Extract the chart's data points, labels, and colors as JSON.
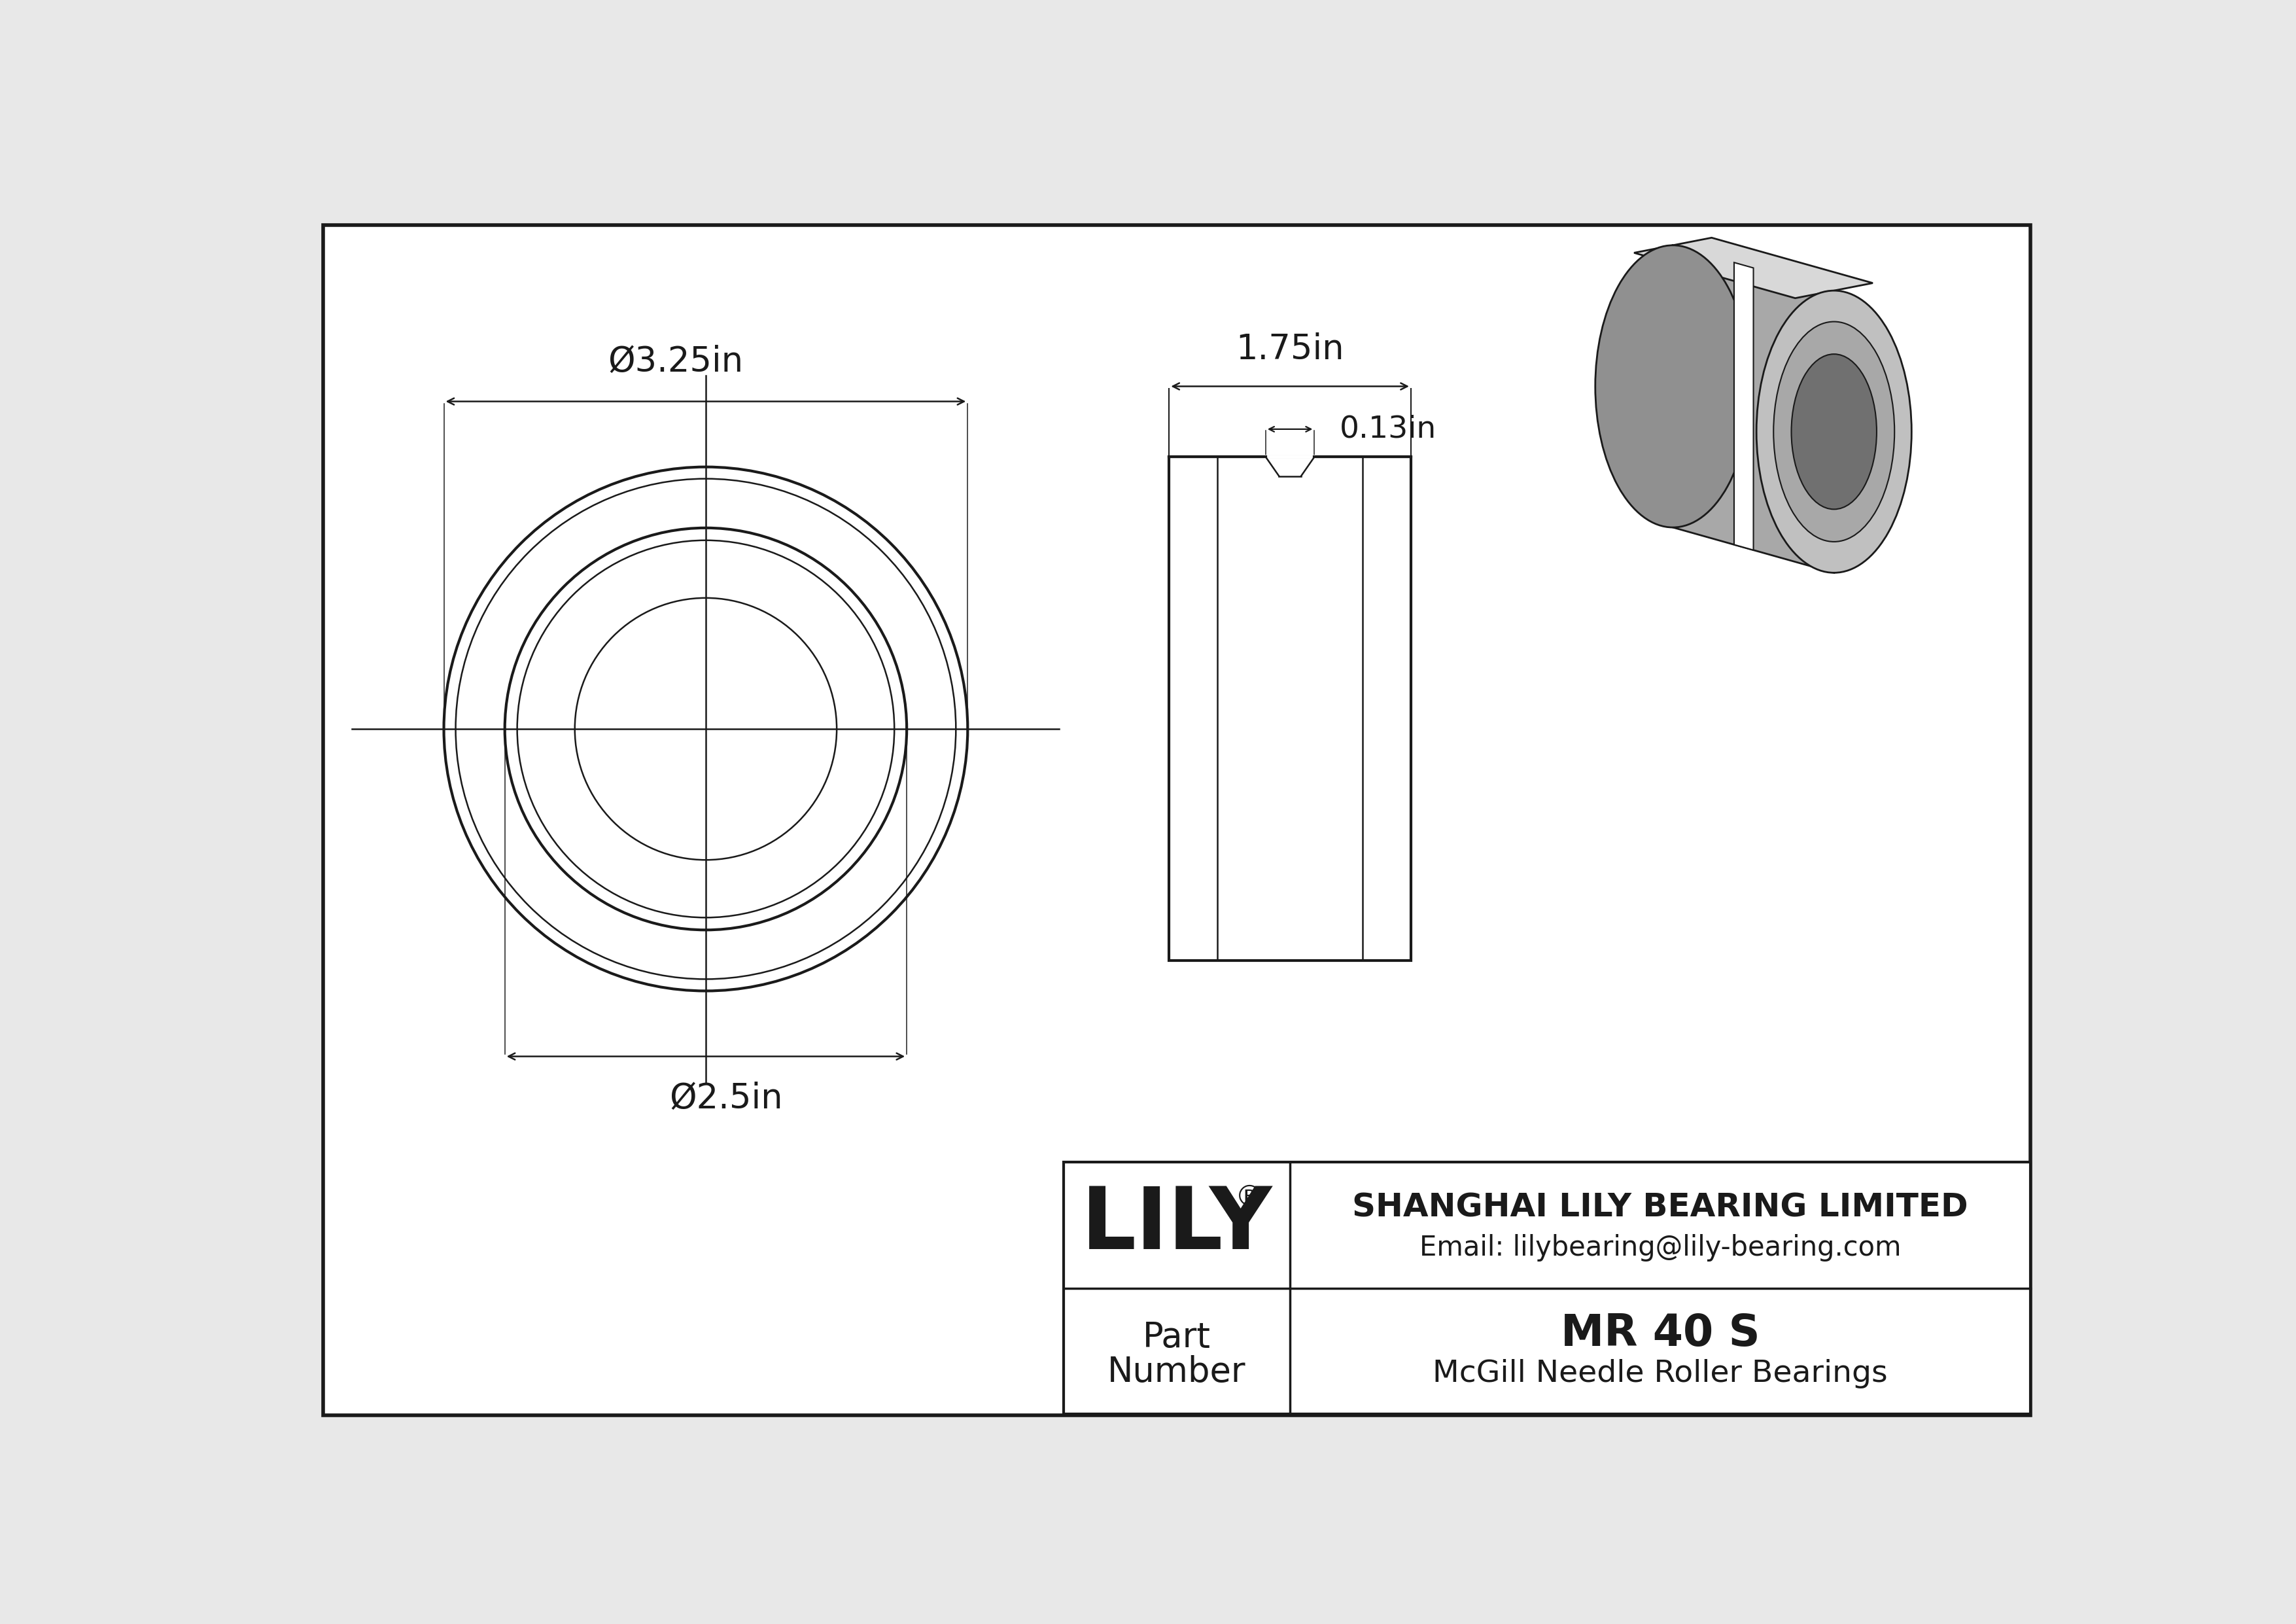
{
  "bg_color": "#e8e8e8",
  "paper_color": "#ffffff",
  "line_color": "#1a1a1a",
  "gray1": "#c0c0c0",
  "gray2": "#a8a8a8",
  "gray3": "#909090",
  "gray4": "#d8d8d8",
  "gray5": "#b8b8b8",
  "gray_dark": "#707070",
  "title": "MR 40 S",
  "subtitle": "McGill Needle Roller Bearings",
  "company": "SHANGHAI LILY BEARING LIMITED",
  "email": "Email: lilybearing@lily-bearing.com",
  "part_label_line1": "Part",
  "part_label_line2": "Number",
  "dim_od": "Ø3.25in",
  "dim_id": "Ø2.5in",
  "dim_width": "1.75in",
  "dim_groove": "0.13in",
  "lw_main": 3.0,
  "lw_thin": 1.8,
  "lw_dim": 1.8,
  "lw_border": 4.0
}
